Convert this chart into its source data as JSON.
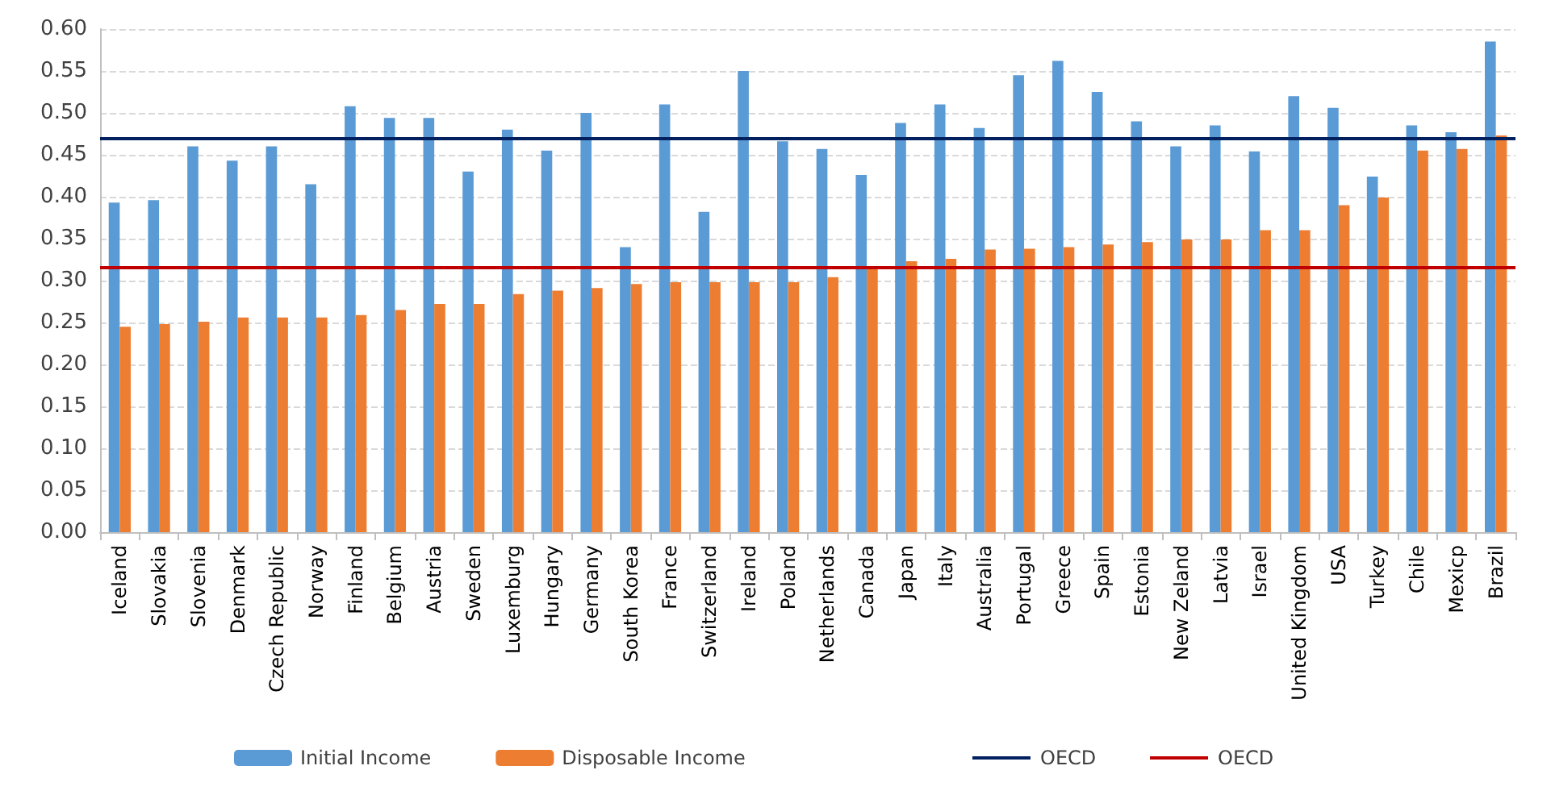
{
  "chart_data": {
    "type": "bar",
    "categories": [
      "Iceland",
      "Slovakia",
      "Slovenia",
      "Denmark",
      "Czech Republic",
      "Norway",
      "Finland",
      "Belgium",
      "Austria",
      "Sweden",
      "Luxemburg",
      "Hungary",
      "Germany",
      "South Korea",
      "France",
      "Switzerland",
      "Ireland",
      "Poland",
      "Netherlands",
      "Canada",
      "Japan",
      "Italy",
      "Australia",
      "Portugal",
      "Greece",
      "Spain",
      "Estonia",
      "New Zeland",
      "Latvia",
      "Israel",
      "United Kingdom",
      "USA",
      "Turkey",
      "Chile",
      "Mexicp",
      "Brazil"
    ],
    "series": [
      {
        "name": "Initial Income",
        "color": "#5b9bd5",
        "values": [
          0.393,
          0.396,
          0.46,
          0.443,
          0.46,
          0.415,
          0.508,
          0.494,
          0.494,
          0.43,
          0.48,
          0.455,
          0.5,
          0.34,
          0.51,
          0.382,
          0.55,
          0.466,
          0.457,
          0.426,
          0.488,
          0.51,
          0.482,
          0.545,
          0.562,
          0.525,
          0.49,
          0.46,
          0.485,
          0.454,
          0.52,
          0.506,
          0.424,
          0.485,
          0.477,
          0.585
        ]
      },
      {
        "name": "Disposable Income",
        "color": "#ed7d31",
        "values": [
          0.245,
          0.248,
          0.251,
          0.256,
          0.256,
          0.256,
          0.259,
          0.265,
          0.272,
          0.272,
          0.284,
          0.288,
          0.291,
          0.296,
          0.298,
          0.298,
          0.298,
          0.298,
          0.304,
          0.315,
          0.323,
          0.326,
          0.337,
          0.338,
          0.34,
          0.343,
          0.346,
          0.349,
          0.349,
          0.36,
          0.36,
          0.39,
          0.399,
          0.455,
          0.457,
          0.473
        ]
      }
    ],
    "ref_lines": [
      {
        "axis": "y",
        "value": 0.47,
        "label": "OECD",
        "color": "#002060"
      },
      {
        "axis": "y",
        "value": 0.315,
        "label": "OECD",
        "color": "#c00000"
      }
    ],
    "ylim": [
      0,
      0.6
    ],
    "yticks": [
      {
        "value": 0,
        "label": "0.00"
      },
      {
        "value": 0.05,
        "label": "0.05"
      },
      {
        "value": 0.1,
        "label": "0.10"
      },
      {
        "value": 0.15,
        "label": "0.15"
      },
      {
        "value": 0.2,
        "label": "0.20"
      },
      {
        "value": 0.25,
        "label": "0.25"
      },
      {
        "value": 0.3,
        "label": "0.30"
      },
      {
        "value": 0.35,
        "label": "0.35"
      },
      {
        "value": 0.4,
        "label": "0.40"
      },
      {
        "value": 0.45,
        "label": "0.45"
      },
      {
        "value": 0.5,
        "label": "0.50"
      },
      {
        "value": 0.55,
        "label": "0.55"
      },
      {
        "value": 0.6,
        "label": "0.60"
      }
    ],
    "grid": "y",
    "legend": "bottom"
  }
}
